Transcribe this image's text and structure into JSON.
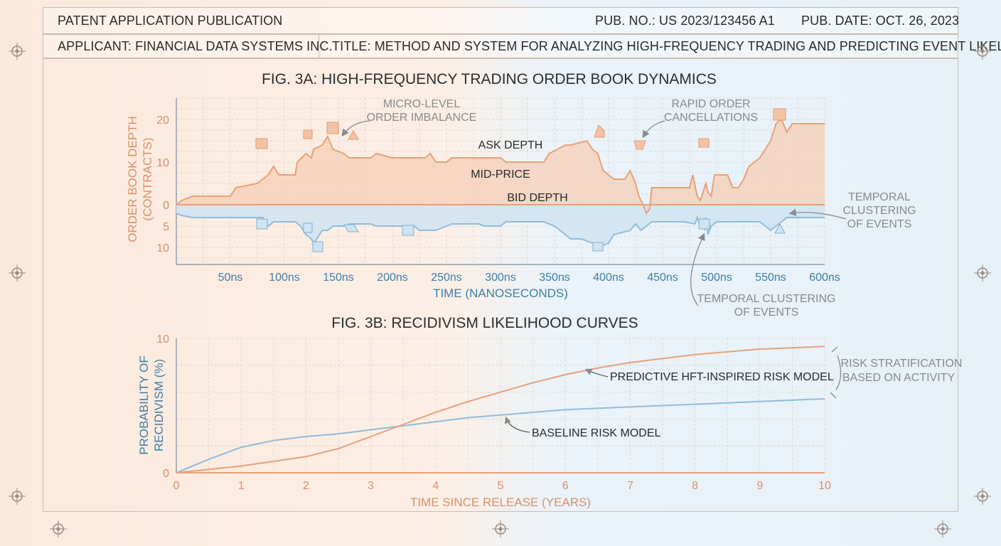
{
  "header": {
    "publication_type": "PATENT APPLICATION PUBLICATION",
    "pub_no": "PUB. NO.: US 2023/123456 A1",
    "pub_date": "PUB. DATE: OCT. 26, 2023",
    "applicant": "APPLICANT: FINANCIAL DATA SYSTEMS INC.",
    "title": "TITLE: METHOD AND SYSTEM FOR ANALYZING HIGH-FREQUENCY TRADING AND PREDICTING EVENT LIKELIHOOD"
  },
  "colors": {
    "orange": "#e8a07a",
    "orange_fill": "#f6cdb5",
    "blue": "#8fbcdc",
    "blue_fill": "#cfe3f1",
    "orange_text": "#d8906a",
    "blue_text": "#3f7fa6"
  },
  "chart_data": [
    {
      "type": "area",
      "title": "FIG. 3A: HIGH-FREQUENCY TRADING ORDER BOOK DYNAMICS",
      "xlabel": "TIME (NANOSECONDS)",
      "ylabel": "ORDER BOOK DEPTH (CONTRACTS)",
      "x_tick_labels": [
        "50ns",
        "100ns",
        "150ns",
        "200ns",
        "250ns",
        "300ns",
        "350ns",
        "400ns",
        "450ns",
        "500ns",
        "550ns",
        "600ns"
      ],
      "x_ticks": [
        50,
        100,
        150,
        200,
        250,
        300,
        350,
        400,
        450,
        500,
        550,
        600
      ],
      "y_tick_labels": [
        "20",
        "10",
        "0",
        "5",
        "10"
      ],
      "y_ticks": [
        20,
        10,
        0,
        -5,
        -10
      ],
      "xlim": [
        0,
        600
      ],
      "ylim": [
        -14,
        25
      ],
      "grid": true,
      "series": [
        {
          "name": "ASK DEPTH",
          "x": [
            0,
            5,
            15,
            50,
            55,
            75,
            85,
            90,
            95,
            110,
            112,
            120,
            125,
            127,
            135,
            140,
            145,
            155,
            160,
            180,
            185,
            200,
            230,
            235,
            240,
            250,
            255,
            300,
            305,
            340,
            345,
            360,
            365,
            380,
            385,
            390,
            395,
            405,
            415,
            420,
            425,
            428,
            432,
            435,
            438,
            440,
            445,
            450,
            475,
            478,
            482,
            485,
            490,
            492,
            495,
            498,
            510,
            515,
            520,
            525,
            530,
            540,
            545,
            550,
            555,
            560,
            565,
            570,
            600
          ],
          "values": [
            0,
            1,
            2,
            2,
            4,
            5,
            7,
            9,
            7,
            7,
            10,
            12,
            11,
            13,
            14,
            16,
            13,
            12,
            11,
            11,
            12,
            11,
            11,
            12,
            10,
            10,
            11,
            11,
            10,
            10,
            12,
            14,
            14,
            15,
            13,
            12,
            8,
            6,
            6,
            8,
            5,
            2,
            0,
            -2,
            -1,
            4,
            4,
            4,
            4,
            7,
            2,
            1,
            5,
            3,
            2,
            7,
            7,
            4,
            4,
            6,
            9,
            11,
            13,
            15,
            19,
            20,
            17,
            19,
            19
          ]
        },
        {
          "name": "BID DEPTH",
          "x": [
            0,
            5,
            15,
            20,
            80,
            85,
            90,
            110,
            115,
            120,
            125,
            127,
            130,
            135,
            140,
            145,
            155,
            160,
            180,
            185,
            220,
            225,
            240,
            250,
            255,
            280,
            285,
            300,
            305,
            340,
            350,
            360,
            365,
            375,
            385,
            390,
            395,
            400,
            405,
            420,
            425,
            430,
            435,
            440,
            445,
            470,
            480,
            482,
            485,
            487,
            489,
            490,
            492,
            495,
            500,
            540,
            545,
            550,
            555,
            560,
            565,
            600
          ],
          "values": [
            -2,
            -2.5,
            -3,
            -3,
            -3,
            -5,
            -4,
            -4,
            -5,
            -7,
            -8,
            -9,
            -8,
            -6,
            -6,
            -5,
            -5,
            -4.5,
            -4.5,
            -5,
            -5,
            -6,
            -6,
            -5,
            -4.5,
            -4.5,
            -5,
            -5,
            -4,
            -4,
            -5,
            -7,
            -8,
            -8,
            -9,
            -10,
            -9.5,
            -9,
            -7,
            -6,
            -4.5,
            -6,
            -5,
            -4,
            -4,
            -4,
            -4.5,
            -3,
            -5,
            -4,
            -6,
            -3,
            -7,
            -5,
            -4,
            -4,
            -5,
            -6,
            -5,
            -4,
            -3,
            -3
          ]
        },
        {
          "name": "MID-PRICE",
          "x": [
            0,
            600
          ],
          "values": [
            0,
            0
          ]
        }
      ],
      "annotations": [
        "MICRO-LEVEL\nORDER IMBALANCE",
        "RAPID ORDER\nCANCELLATIONS",
        "TEMPORAL\nCLUSTERING\nOF EVENTS",
        "TEMPORAL CLUSTERING\nOF EVENTS"
      ]
    },
    {
      "type": "line",
      "title": "FIG. 3B: RECIDIVISM LIKELIHOOD CURVES",
      "xlabel": "TIME SINCE RELEASE (YEARS)",
      "ylabel": "PROBABILITY OF RECIDIVISM (%)",
      "x_tick_labels": [
        "0",
        "1",
        "2",
        "3",
        "4",
        "5",
        "6",
        "7",
        "8",
        "9",
        "10"
      ],
      "y_tick_labels": [
        "10",
        "0"
      ],
      "xlim": [
        0,
        10
      ],
      "ylim": [
        0,
        10
      ],
      "grid": true,
      "series": [
        {
          "name": "PREDICTIVE HFT-INSPIRED RISK MODEL",
          "x": [
            0,
            1,
            2,
            2.5,
            3,
            3.5,
            4,
            4.5,
            5,
            5.5,
            6,
            6.5,
            7,
            7.5,
            8,
            8.5,
            9,
            9.5,
            10
          ],
          "values": [
            0,
            0.5,
            1.2,
            1.8,
            2.7,
            3.6,
            4.5,
            5.3,
            6.0,
            6.7,
            7.3,
            7.8,
            8.2,
            8.5,
            8.8,
            9.0,
            9.2,
            9.3,
            9.4
          ]
        },
        {
          "name": "BASELINE RISK MODEL",
          "x": [
            0,
            0.5,
            1,
            1.5,
            2,
            2.5,
            3,
            3.5,
            4,
            4.5,
            5,
            6,
            7,
            8,
            9,
            10
          ],
          "values": [
            0,
            1.0,
            1.9,
            2.4,
            2.7,
            2.9,
            3.2,
            3.5,
            3.8,
            4.1,
            4.3,
            4.7,
            4.9,
            5.1,
            5.3,
            5.5
          ]
        }
      ],
      "annotations": [
        "RISK STRATIFICATION\nBASED ON ACTIVITY"
      ]
    }
  ]
}
